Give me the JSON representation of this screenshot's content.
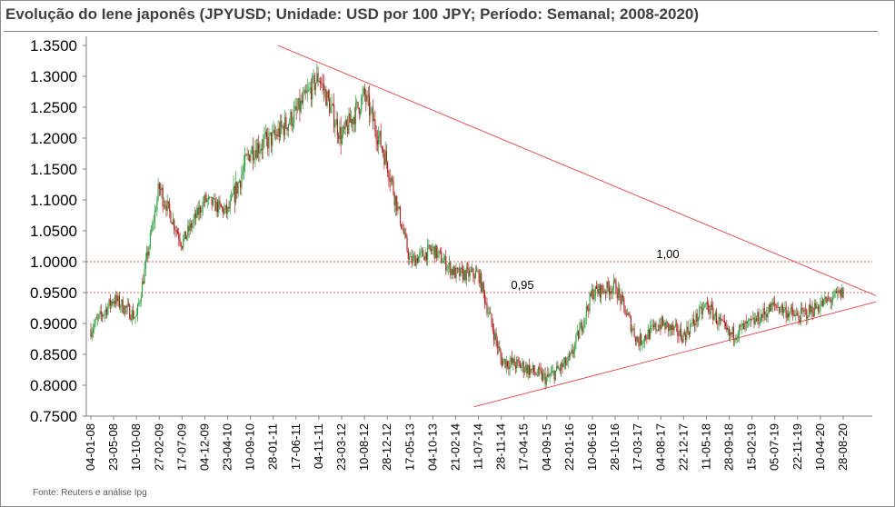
{
  "title": "Evolução do Iene japonês (JPYUSD; Unidade: USD por 100 JPY; Período: Semanal; 2008-2020)",
  "source": "Fonte: Reuters e análise Ipg",
  "colors": {
    "up": "#2e9e3e",
    "down": "#b01c1c",
    "guide": "#e03030",
    "axis": "#7f7f7f"
  },
  "chart_data": {
    "type": "candlestick",
    "title": "Evolução do Iene japonês (JPYUSD; Unidade: USD por 100 JPY; Período: Semanal; 2008-2020)",
    "ylim": [
      0.75,
      1.35
    ],
    "yticks": [
      "1.3500",
      "1.3000",
      "1.2500",
      "1.2000",
      "1.1500",
      "1.1000",
      "1.0500",
      "1.0000",
      "0.9500",
      "0.9000",
      "0.8500",
      "0.8000",
      "0.7500"
    ],
    "ytick_values": [
      1.35,
      1.3,
      1.25,
      1.2,
      1.15,
      1.1,
      1.05,
      1.0,
      0.95,
      0.9,
      0.85,
      0.8,
      0.75
    ],
    "xticks": [
      "04-01-08",
      "23-05-08",
      "10-10-08",
      "27-02-09",
      "17-07-09",
      "04-12-09",
      "23-04-10",
      "10-09-10",
      "28-01-11",
      "17-06-11",
      "04-11-11",
      "23-03-12",
      "10-08-12",
      "28-12-12",
      "17-05-13",
      "04-10-13",
      "21-02-14",
      "11-07-14",
      "28-11-14",
      "17-04-15",
      "04-09-15",
      "22-01-16",
      "10-06-16",
      "28-10-16",
      "17-03-17",
      "04-08-17",
      "22-12-17",
      "11-05-18",
      "28-09-18",
      "15-02-19",
      "05-07-19",
      "22-11-19",
      "10-04-20",
      "28-08-20"
    ],
    "series": [
      {
        "name": "",
        "close_anchors": [
          [
            "04-01-08",
            0.89
          ],
          [
            "23-05-08",
            0.94
          ],
          [
            "10-10-08",
            0.91
          ],
          [
            "27-02-09",
            1.12
          ],
          [
            "17-07-09",
            1.03
          ],
          [
            "04-12-09",
            1.1
          ],
          [
            "23-04-10",
            1.08
          ],
          [
            "10-09-10",
            1.18
          ],
          [
            "28-01-11",
            1.2
          ],
          [
            "17-06-11",
            1.24
          ],
          [
            "04-11-11",
            1.3
          ],
          [
            "23-03-12",
            1.2
          ],
          [
            "10-08-12",
            1.27
          ],
          [
            "28-12-12",
            1.16
          ],
          [
            "17-05-13",
            1.0
          ],
          [
            "04-10-13",
            1.02
          ],
          [
            "21-02-14",
            0.98
          ],
          [
            "11-07-14",
            0.98
          ],
          [
            "28-11-14",
            0.84
          ],
          [
            "17-04-15",
            0.83
          ],
          [
            "04-09-15",
            0.81
          ],
          [
            "22-01-16",
            0.84
          ],
          [
            "10-06-16",
            0.95
          ],
          [
            "28-10-16",
            0.96
          ],
          [
            "17-03-17",
            0.87
          ],
          [
            "04-08-17",
            0.9
          ],
          [
            "22-12-17",
            0.88
          ],
          [
            "11-05-18",
            0.93
          ],
          [
            "28-09-18",
            0.88
          ],
          [
            "15-02-19",
            0.9
          ],
          [
            "05-07-19",
            0.93
          ],
          [
            "22-11-19",
            0.91
          ],
          [
            "10-04-20",
            0.93
          ],
          [
            "28-08-20",
            0.95
          ]
        ]
      }
    ],
    "reference_lines": [
      {
        "label": "1,00",
        "y": 1.0
      },
      {
        "label": "0,95",
        "y": 0.95
      }
    ],
    "trend_lines": [
      {
        "from": [
          "04-11-11",
          1.35
        ],
        "to": [
          "28-08-20",
          0.945
        ],
        "label": ""
      },
      {
        "from": [
          "28-11-14",
          0.765
        ],
        "to": [
          "28-08-20",
          0.935
        ],
        "label": ""
      }
    ],
    "grid": false,
    "legend": "none"
  }
}
